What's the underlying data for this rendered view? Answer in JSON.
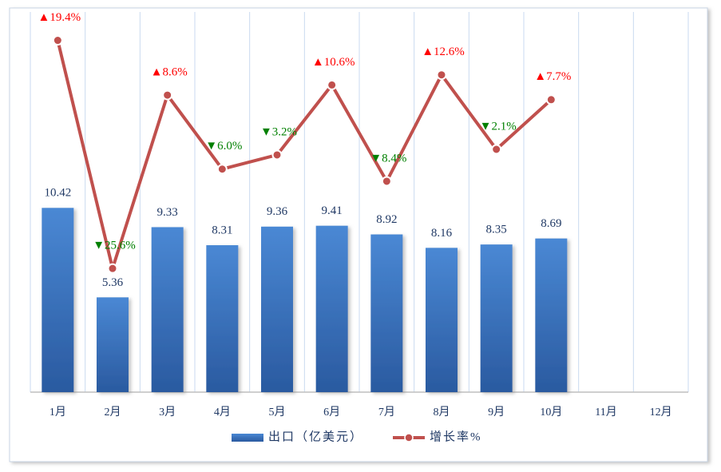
{
  "chart_data": {
    "type": "bar_line",
    "categories": [
      "1月",
      "2月",
      "3月",
      "4月",
      "5月",
      "6月",
      "7月",
      "8月",
      "9月",
      "10月",
      "11月",
      "12月"
    ],
    "series": [
      {
        "name": "出口（亿美元）",
        "type": "bar",
        "color": "#3a74c4",
        "values": [
          10.42,
          5.36,
          9.33,
          8.31,
          9.36,
          9.41,
          8.92,
          8.16,
          8.35,
          8.69,
          null,
          null
        ]
      },
      {
        "name": "增长率%",
        "type": "line",
        "axis": "y2",
        "color": "#c0504d",
        "values": [
          19.4,
          -25.6,
          8.6,
          -6.0,
          -3.2,
          10.6,
          -8.4,
          12.6,
          -2.1,
          7.7,
          null,
          null
        ],
        "value_labels": [
          "▲19.4%",
          "▼25.6%",
          "▲8.6%",
          "▼6.0%",
          "▼3.2%",
          "▲10.6%",
          "▼8.4%",
          "▲12.6%",
          "▼2.1%",
          "▲7.7%",
          null,
          null
        ]
      }
    ],
    "positive_color": "#ff0000",
    "negative_color": "#008000",
    "ylim": [
      0,
      21.5
    ],
    "y2lim": [
      -50,
      25
    ],
    "grid": true,
    "legend": "bottom"
  }
}
